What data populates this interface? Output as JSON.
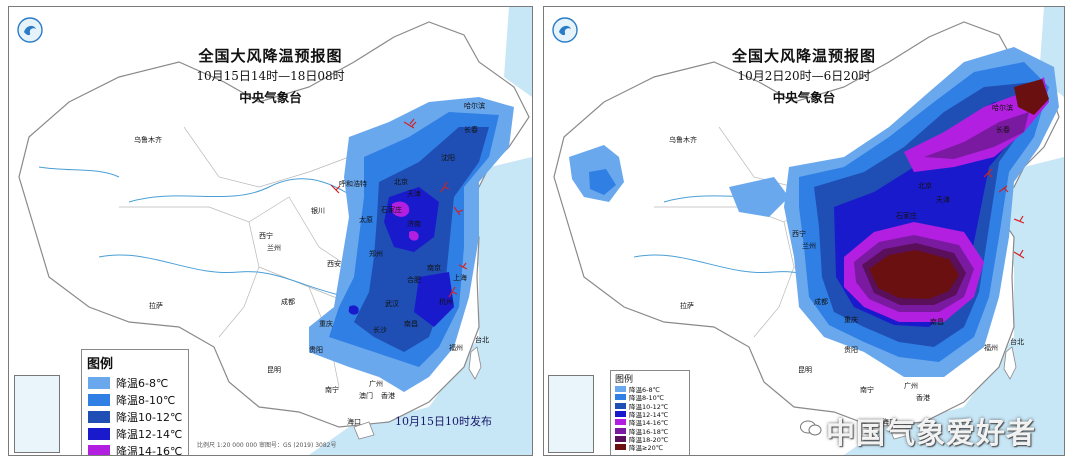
{
  "left_map": {
    "title": "全国大风降温预报图",
    "subtitle": "10月15日14时—18日08时",
    "issuer": "中央气象台",
    "legend_title": "图例",
    "legend": [
      {
        "label": "降温6-8℃",
        "color": "#6aa8ee"
      },
      {
        "label": "降温8-10℃",
        "color": "#2f7fe4"
      },
      {
        "label": "降温10-12℃",
        "color": "#1f4fb4"
      },
      {
        "label": "降温12-14℃",
        "color": "#1a1acd"
      },
      {
        "label": "降温14-16℃",
        "color": "#b21fe0"
      }
    ],
    "issued": "10月15日10时发布",
    "footnote": "比例尺 1:20 000 000    审图号：GS (2019) 3082号",
    "cities": {
      "urumqi": "乌鲁木齐",
      "harbin": "哈尔滨",
      "changchun": "长春",
      "shenyang": "沈阳",
      "hohhot": "呼和浩特",
      "beijing": "北京",
      "tianjin": "天津",
      "yinchuan": "银川",
      "taiyuan": "太原",
      "shijiazhuang": "石家庄",
      "jinan": "济南",
      "xining": "西宁",
      "lanzhou": "兰州",
      "zhengzhou": "郑州",
      "xian": "西安",
      "nanjing": "南京",
      "hefei": "合肥",
      "shanghai": "上海",
      "chengdu": "成都",
      "wuhan": "武汉",
      "hangzhou": "杭州",
      "lhasa": "拉萨",
      "chongqing": "重庆",
      "changsha": "长沙",
      "nanchang": "南昌",
      "fuzhou": "福州",
      "guiyang": "贵阳",
      "kunming": "昆明",
      "nanning": "南宁",
      "guangzhou": "广州",
      "hongkong": "香港",
      "macau": "澳门",
      "taipei": "台北",
      "haikou": "海口"
    }
  },
  "right_map": {
    "title": "全国大风降温预报图",
    "subtitle": "10月2日20时—6日20时",
    "issuer": "中央气象台",
    "legend_title": "图例",
    "legend": [
      {
        "label": "降温6-8℃",
        "color": "#6aa8ee"
      },
      {
        "label": "降温8-10℃",
        "color": "#2f7fe4"
      },
      {
        "label": "降温10-12℃",
        "color": "#1f4fb4"
      },
      {
        "label": "降温12-14℃",
        "color": "#1a1acd"
      },
      {
        "label": "降温14-16℃",
        "color": "#b21fe0"
      },
      {
        "label": "降温16-18℃",
        "color": "#7a1aa0"
      },
      {
        "label": "降温18-20℃",
        "color": "#5a0f5a"
      },
      {
        "label": "降温≥20℃",
        "color": "#6b1010"
      }
    ],
    "cities": {
      "urumqi": "乌鲁木齐",
      "harbin": "哈尔滨",
      "changchun": "长春",
      "beijing": "北京",
      "shijiazhuang": "石家庄",
      "tianjin": "天津",
      "xining": "西宁",
      "lanzhou": "兰州",
      "lhasa": "拉萨",
      "chengdu": "成都",
      "chongqing": "重庆",
      "nanchang": "南昌",
      "guiyang": "贵阳",
      "kunming": "昆明",
      "fuzhou": "福州",
      "taipei": "台北",
      "nanning": "南宁",
      "guangzhou": "广州",
      "hongkong": "香港",
      "haikou": "海口"
    }
  },
  "watermark": "中国气象爱好者",
  "colors": {
    "land": "#ffffff",
    "sea": "#c7e6f6",
    "border": "#8a8a8a",
    "river": "#4a9fd6"
  }
}
